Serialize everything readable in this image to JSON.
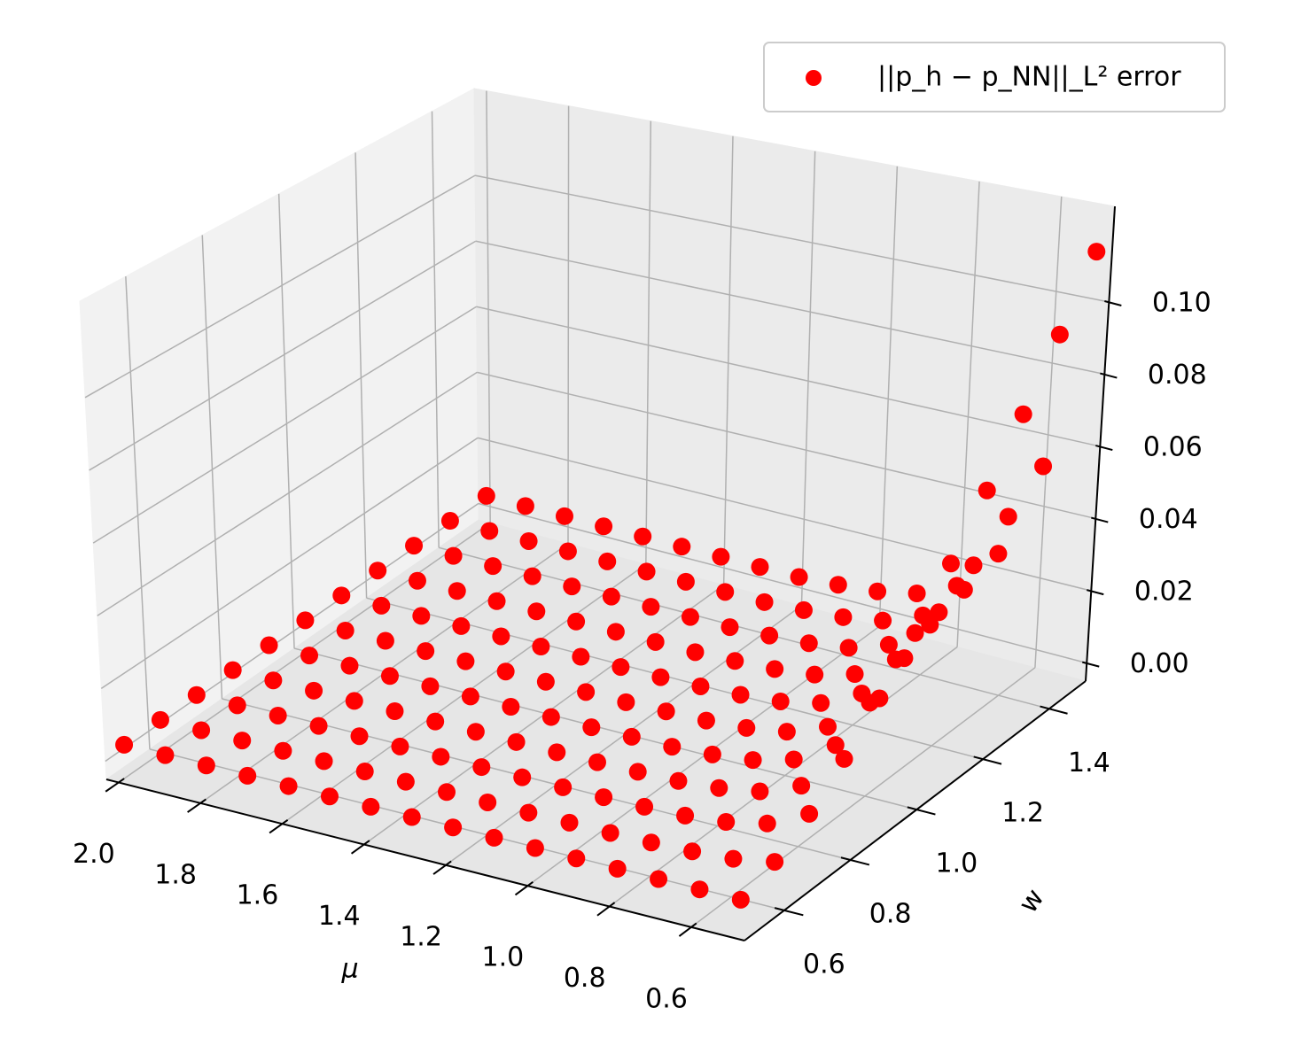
{
  "chart_data": {
    "type": "scatter3d",
    "xlabel": "μ",
    "ylabel": "w",
    "xlim": [
      2.03,
      0.47
    ],
    "ylim": [
      0.48,
      1.51
    ],
    "zlim": [
      -0.005,
      0.1265
    ],
    "xticks": [
      {
        "value": 2,
        "label": "2.0"
      },
      1.8,
      1.6,
      1.4,
      1.2,
      {
        "value": 1,
        "label": "1.0"
      },
      0.8,
      0.6
    ],
    "yticks": [
      0.6,
      0.8,
      {
        "value": 1,
        "label": "1.0"
      },
      1.2,
      1.4
    ],
    "zticks": [
      {
        "value": 0,
        "label": "0.00"
      },
      0.02,
      0.04,
      0.06,
      0.08,
      {
        "value": 0.1,
        "label": "0.10"
      }
    ],
    "grid": true,
    "legend": "upper right",
    "series": [
      {
        "name": "||p_h − p_NN||_L² error",
        "color": "#ff0000",
        "x": [
          2,
          1.9,
          1.8,
          1.7,
          1.6,
          1.5,
          1.4,
          1.3,
          1.2,
          1.1,
          1,
          0.9,
          0.8,
          0.7,
          0.6,
          0.5,
          2,
          1.9,
          1.8,
          1.7,
          1.6,
          1.5,
          1.4,
          1.3,
          1.2,
          1.1,
          1,
          0.9,
          0.8,
          0.7,
          0.6,
          0.5,
          2,
          1.9,
          1.8,
          1.7,
          1.6,
          1.5,
          1.4,
          1.3,
          1.2,
          1.1,
          1,
          0.9,
          0.8,
          0.7,
          0.6,
          0.5,
          2,
          1.9,
          1.8,
          1.7,
          1.6,
          1.5,
          1.4,
          1.3,
          1.2,
          1.1,
          1,
          0.9,
          0.8,
          0.7,
          0.6,
          0.5,
          2,
          1.9,
          1.8,
          1.7,
          1.6,
          1.5,
          1.4,
          1.3,
          1.2,
          1.1,
          1,
          0.9,
          0.8,
          0.7,
          0.6,
          0.5,
          2,
          1.9,
          1.8,
          1.7,
          1.6,
          1.5,
          1.4,
          1.3,
          1.2,
          1.1,
          1,
          0.9,
          0.8,
          0.7,
          0.6,
          0.5,
          2,
          1.9,
          1.8,
          1.7,
          1.6,
          1.5,
          1.4,
          1.3,
          1.2,
          1.1,
          1,
          0.9,
          0.8,
          0.7,
          0.6,
          0.5,
          2,
          1.9,
          1.8,
          1.7,
          1.6,
          1.5,
          1.4,
          1.3,
          1.2,
          1.1,
          1,
          0.9,
          0.8,
          0.7,
          0.6,
          0.5,
          2,
          1.9,
          1.8,
          1.7,
          1.6,
          1.5,
          1.4,
          1.3,
          1.2,
          1.1,
          1,
          0.9,
          0.8,
          0.7,
          0.6,
          0.5,
          2,
          1.9,
          1.8,
          1.7,
          1.6,
          1.5,
          1.4,
          1.3,
          1.2,
          1.1,
          1,
          0.9,
          0.8,
          0.7,
          0.6,
          0.5,
          2,
          1.9,
          1.8,
          1.7,
          1.6,
          1.5,
          1.4,
          1.3,
          1.2,
          1.1,
          1,
          0.9,
          0.8,
          0.7,
          0.6,
          0.5
        ],
        "y": [
          0.5,
          0.5,
          0.5,
          0.5,
          0.5,
          0.5,
          0.5,
          0.5,
          0.5,
          0.5,
          0.5,
          0.5,
          0.5,
          0.5,
          0.5,
          0.5,
          0.6,
          0.6,
          0.6,
          0.6,
          0.6,
          0.6,
          0.6,
          0.6,
          0.6,
          0.6,
          0.6,
          0.6,
          0.6,
          0.6,
          0.6,
          0.6,
          0.7,
          0.7,
          0.7,
          0.7,
          0.7,
          0.7,
          0.7,
          0.7,
          0.7,
          0.7,
          0.7,
          0.7,
          0.7,
          0.7,
          0.7,
          0.7,
          0.8,
          0.8,
          0.8,
          0.8,
          0.8,
          0.8,
          0.8,
          0.8,
          0.8,
          0.8,
          0.8,
          0.8,
          0.8,
          0.8,
          0.8,
          0.8,
          0.9,
          0.9,
          0.9,
          0.9,
          0.9,
          0.9,
          0.9,
          0.9,
          0.9,
          0.9,
          0.9,
          0.9,
          0.9,
          0.9,
          0.9,
          0.9,
          1,
          1,
          1,
          1,
          1,
          1,
          1,
          1,
          1,
          1,
          1,
          1,
          1,
          1,
          1,
          1,
          1.1,
          1.1,
          1.1,
          1.1,
          1.1,
          1.1,
          1.1,
          1.1,
          1.1,
          1.1,
          1.1,
          1.1,
          1.1,
          1.1,
          1.1,
          1.1,
          1.2,
          1.2,
          1.2,
          1.2,
          1.2,
          1.2,
          1.2,
          1.2,
          1.2,
          1.2,
          1.2,
          1.2,
          1.2,
          1.2,
          1.2,
          1.2,
          1.3,
          1.3,
          1.3,
          1.3,
          1.3,
          1.3,
          1.3,
          1.3,
          1.3,
          1.3,
          1.3,
          1.3,
          1.3,
          1.3,
          1.3,
          1.3,
          1.4,
          1.4,
          1.4,
          1.4,
          1.4,
          1.4,
          1.4,
          1.4,
          1.4,
          1.4,
          1.4,
          1.4,
          1.4,
          1.4,
          1.4,
          1.4,
          1.5,
          1.5,
          1.5,
          1.5,
          1.5,
          1.5,
          1.5,
          1.5,
          1.5,
          1.5,
          1.5,
          1.5,
          1.5,
          1.5,
          1.5,
          1.5
        ],
        "values": [
          0.004,
          0.004,
          0.004,
          0.004,
          0.004,
          0.004,
          0.004,
          0.004,
          0.004,
          0.004,
          0.004,
          0.004,
          0.004,
          0.004,
          0.004,
          0.004,
          0.004,
          0.004,
          0.004,
          0.004,
          0.004,
          0.004,
          0.004,
          0.004,
          0.004,
          0.004,
          0.0041,
          0.0041,
          0.0043,
          0.0047,
          0.0055,
          0.0075,
          0.004,
          0.004,
          0.004,
          0.004,
          0.004,
          0.004,
          0.004,
          0.004,
          0.004,
          0.0041,
          0.0042,
          0.0044,
          0.0048,
          0.0059,
          0.0083,
          0.0138,
          0.004,
          0.004,
          0.004,
          0.004,
          0.004,
          0.004,
          0.004,
          0.004,
          0.004,
          0.0041,
          0.0043,
          0.0046,
          0.0055,
          0.0074,
          0.0118,
          0.022,
          0.004,
          0.004,
          0.004,
          0.004,
          0.004,
          0.004,
          0.004,
          0.004,
          0.004,
          0.0042,
          0.0043,
          0.005,
          0.0063,
          0.0093,
          0.0161,
          0.0318,
          0.004,
          0.004,
          0.004,
          0.004,
          0.004,
          0.004,
          0.004,
          0.004,
          0.004,
          0.0043,
          0.0046,
          0.0054,
          0.0072,
          0.0114,
          0.0209,
          0.0429,
          0.004,
          0.004,
          0.004,
          0.004,
          0.004,
          0.004,
          0.004,
          0.004,
          0.004,
          0.0043,
          0.0048,
          0.0058,
          0.0082,
          0.0137,
          0.0263,
          0.0552,
          0.004,
          0.004,
          0.004,
          0.004,
          0.004,
          0.004,
          0.004,
          0.004,
          0.004,
          0.0044,
          0.005,
          0.0063,
          0.0093,
          0.0162,
          0.0321,
          0.0685,
          0.004,
          0.004,
          0.004,
          0.004,
          0.004,
          0.004,
          0.004,
          0.004,
          0.004,
          0.0045,
          0.0052,
          0.0068,
          0.0105,
          0.0189,
          0.0382,
          0.0827,
          0.004,
          0.004,
          0.004,
          0.004,
          0.004,
          0.004,
          0.004,
          0.004,
          0.004,
          0.0046,
          0.0055,
          0.0074,
          0.0117,
          0.0217,
          0.0448,
          0.0979,
          0.004,
          0.004,
          0.004,
          0.004,
          0.004,
          0.004,
          0.004,
          0.004,
          0.004,
          0.0047,
          0.0057,
          0.008,
          0.013,
          0.0248,
          0.0519,
          0.114
        ]
      }
    ]
  }
}
